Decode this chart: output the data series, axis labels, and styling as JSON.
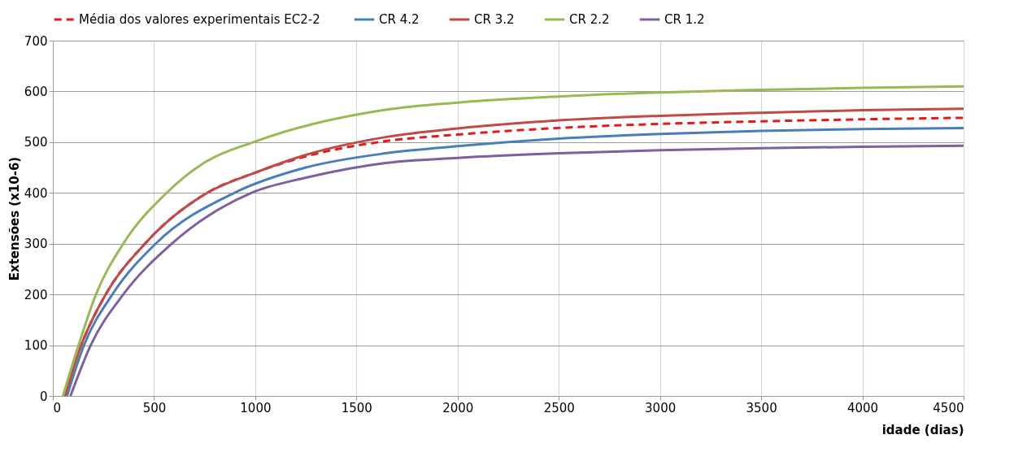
{
  "chart_data": {
    "type": "line",
    "xlabel": "idade (dias)",
    "ylabel": "Extensões (x10-6)",
    "xlim": [
      0,
      4500
    ],
    "ylim": [
      0,
      700
    ],
    "xticks": [
      0,
      500,
      1000,
      1500,
      2000,
      2500,
      3000,
      3500,
      4000,
      4500
    ],
    "yticks": [
      0,
      100,
      200,
      300,
      400,
      500,
      600,
      700
    ],
    "grid": true,
    "legend": "top",
    "marker": "none",
    "series": [
      {
        "name": "Média dos valores experimentais  EC2-2",
        "color": "#e31a1c",
        "line_style": "dashed",
        "x": [
          55,
          140,
          261,
          455,
          762,
          1000,
          1250,
          1644,
          2000,
          2500,
          3000,
          3500,
          4000,
          4500
        ],
        "values": [
          0,
          100,
          200,
          300,
          400,
          440,
          472,
          502,
          515,
          528,
          536,
          541,
          545,
          548
        ]
      },
      {
        "name": "CR 4.2",
        "color": "#4a7ebb",
        "line_style": "solid",
        "x": [
          70,
          154,
          294,
          508,
          896,
          1250,
          1644,
          2000,
          2500,
          3000,
          3500,
          4000,
          4500
        ],
        "values": [
          0,
          100,
          200,
          300,
          400,
          450,
          478,
          492,
          507,
          516,
          522,
          526,
          528
        ]
      },
      {
        "name": "CR 3.2",
        "color": "#be4b48",
        "line_style": "solid",
        "x": [
          60,
          140,
          261,
          455,
          762,
          1000,
          1250,
          1644,
          2000,
          2500,
          3000,
          3500,
          4000,
          4500
        ],
        "values": [
          0,
          100,
          200,
          300,
          400,
          440,
          475,
          510,
          527,
          543,
          552,
          558,
          563,
          566
        ]
      },
      {
        "name": "CR 2.2",
        "color": "#98b954",
        "line_style": "solid",
        "x": [
          50,
          127,
          213,
          348,
          562,
          750,
          990,
          1644,
          2000,
          2500,
          3000,
          3500,
          4000,
          4500
        ],
        "values": [
          0,
          100,
          200,
          300,
          400,
          460,
          500,
          564,
          578,
          590,
          598,
          603,
          607,
          610
        ]
      },
      {
        "name": "CR 1.2",
        "color": "#7d60a0",
        "line_style": "solid",
        "x": [
          87,
          187,
          348,
          588,
          980,
          1250,
          1644,
          2000,
          2500,
          3000,
          3500,
          4000,
          4500
        ],
        "values": [
          0,
          100,
          200,
          300,
          400,
          430,
          459,
          469,
          478,
          484,
          488,
          491,
          493
        ]
      }
    ]
  }
}
